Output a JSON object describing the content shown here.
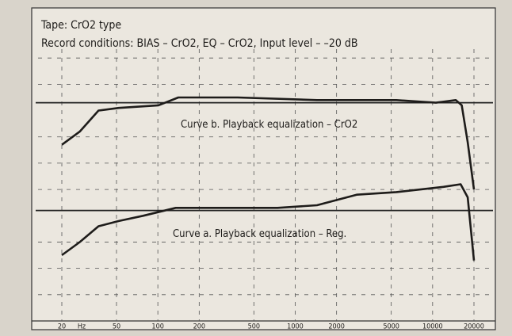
{
  "chart_data": {
    "type": "line",
    "title": "Tape:  CrO2 type",
    "subtitle": "Record conditions:  BIAS – CrO2, EQ – CrO2, Input level – –20 dB",
    "x_unit": "Hz",
    "xscale": "log",
    "xlim": [
      20,
      20000
    ],
    "xticks": [
      20,
      50,
      100,
      200,
      500,
      1000,
      2000,
      5000,
      10000,
      20000
    ],
    "ylim": [
      0,
      11
    ],
    "yticks": [
      1,
      2,
      3,
      5,
      6,
      7,
      9,
      10
    ],
    "reference_lines": [
      8.3,
      4.2
    ],
    "grid": true,
    "series": [
      {
        "name": "Curve b. Playback equalization – CrO2",
        "color": "#1e1c1a",
        "x": [
          20,
          27,
          37,
          52,
          101,
          141,
          382,
          1440,
          5450,
          10570,
          14760,
          16300,
          18000,
          20000
        ],
        "values": [
          6.7,
          7.2,
          8.0,
          8.1,
          8.2,
          8.5,
          8.5,
          8.4,
          8.4,
          8.3,
          8.4,
          8.2,
          6.8,
          5.0
        ]
      },
      {
        "name": "Curve a. Playback equalization – Reg.",
        "color": "#1e1c1a",
        "x": [
          20,
          27,
          37,
          52,
          78,
          135,
          196,
          744,
          1440,
          2800,
          5450,
          12000,
          16000,
          18000,
          20000
        ],
        "values": [
          2.5,
          3.0,
          3.6,
          3.8,
          4.0,
          4.3,
          4.3,
          4.3,
          4.4,
          4.8,
          4.9,
          5.1,
          5.2,
          4.7,
          2.3
        ]
      }
    ]
  }
}
